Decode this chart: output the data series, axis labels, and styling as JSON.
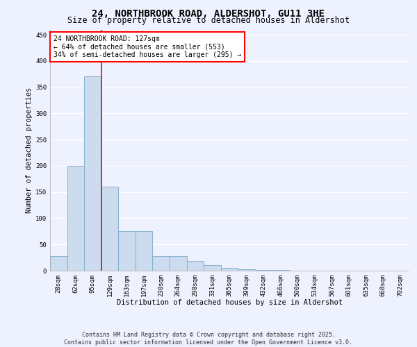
{
  "title": "24, NORTHBROOK ROAD, ALDERSHOT, GU11 3HE",
  "subtitle": "Size of property relative to detached houses in Aldershot",
  "xlabel": "Distribution of detached houses by size in Aldershot",
  "ylabel": "Number of detached properties",
  "categories": [
    "28sqm",
    "62sqm",
    "95sqm",
    "129sqm",
    "163sqm",
    "197sqm",
    "230sqm",
    "264sqm",
    "298sqm",
    "331sqm",
    "365sqm",
    "399sqm",
    "432sqm",
    "466sqm",
    "500sqm",
    "534sqm",
    "567sqm",
    "601sqm",
    "635sqm",
    "668sqm",
    "702sqm"
  ],
  "values": [
    28,
    200,
    370,
    160,
    75,
    75,
    28,
    28,
    18,
    10,
    5,
    3,
    1,
    1,
    0,
    0,
    0,
    0,
    0,
    0,
    0
  ],
  "bar_color": "#ccdcee",
  "bar_edge_color": "#7baac8",
  "vline_x": 2.5,
  "vline_color": "red",
  "annotation_text": "24 NORTHBROOK ROAD: 127sqm\n← 64% of detached houses are smaller (553)\n34% of semi-detached houses are larger (295) →",
  "annotation_box_color": "white",
  "annotation_box_edge": "red",
  "ylim": [
    0,
    460
  ],
  "yticks": [
    0,
    50,
    100,
    150,
    200,
    250,
    300,
    350,
    400,
    450
  ],
  "background_color": "#eef2ff",
  "grid_color": "white",
  "footer_line1": "Contains HM Land Registry data © Crown copyright and database right 2025.",
  "footer_line2": "Contains public sector information licensed under the Open Government Licence v3.0.",
  "title_fontsize": 10,
  "subtitle_fontsize": 8.5,
  "axis_label_fontsize": 7.5,
  "tick_fontsize": 6.5,
  "annotation_fontsize": 7,
  "footer_fontsize": 6
}
